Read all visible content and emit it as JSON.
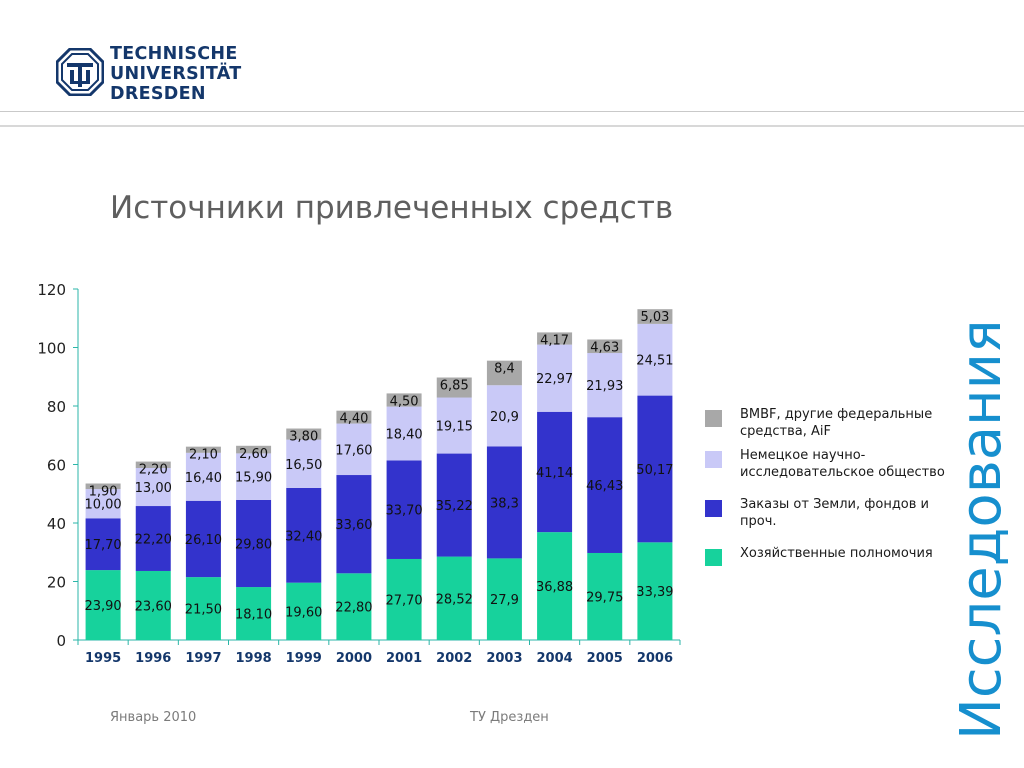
{
  "header": {
    "logo": {
      "line1": "TECHNISCHE",
      "line2": "UNIVERSITÄT",
      "line3": "DRESDEN",
      "icon": "tu-dresden-logo",
      "color": "#14376b"
    }
  },
  "slide": {
    "title": "Источники привлеченных средств",
    "side_label": "Исследования",
    "side_label_color": "#168fce"
  },
  "footer": {
    "left": "Январь  2010",
    "center": "ТУ Дрезден"
  },
  "legend": {
    "items": [
      {
        "label": "BMBF, другие федеральные средства, AiF",
        "color": "#a8a8a8"
      },
      {
        "label": "Немецкое научно-исследовательское общество",
        "color": "#c9c9f7"
      },
      {
        "label": "Заказы от Земли, фондов и проч.",
        "color": "#3333cc"
      },
      {
        "label": "Хозяйственные полномочия",
        "color": "#17d29c"
      }
    ]
  },
  "chart_data": {
    "type": "bar",
    "stacked": true,
    "categories": [
      "1995",
      "1996",
      "1997",
      "1998",
      "1999",
      "2000",
      "2001",
      "2002",
      "2003",
      "2004",
      "2005",
      "2006"
    ],
    "ylim": [
      0,
      120
    ],
    "yticks": [
      0,
      20,
      40,
      60,
      80,
      100,
      120
    ],
    "series": [
      {
        "name": "Хозяйственные полномочия",
        "color": "#17d29c",
        "values": [
          23.9,
          23.6,
          21.5,
          18.1,
          19.6,
          22.8,
          27.7,
          28.52,
          27.9,
          36.88,
          29.75,
          33.39
        ],
        "labels": [
          "23,90",
          "23,60",
          "21,50",
          "18,10",
          "19,60",
          "22,80",
          "27,70",
          "28,52",
          "27,9",
          "36,88",
          "29,75",
          "33,39"
        ]
      },
      {
        "name": "Заказы от Земли, фондов и проч.",
        "color": "#3333cc",
        "values": [
          17.7,
          22.2,
          26.1,
          29.8,
          32.4,
          33.6,
          33.7,
          35.22,
          38.3,
          41.14,
          46.43,
          50.17
        ],
        "labels": [
          "17,70",
          "22,20",
          "26,10",
          "29,80",
          "32,40",
          "33,60",
          "33,70",
          "35,22",
          "38,3",
          "41,14",
          "46,43",
          "50,17"
        ]
      },
      {
        "name": "Немецкое научно-исследовательское общество",
        "color": "#c9c9f7",
        "values": [
          10.0,
          13.0,
          16.4,
          15.9,
          16.5,
          17.6,
          18.4,
          19.15,
          20.9,
          22.97,
          21.93,
          24.51
        ],
        "labels": [
          "10,00",
          "13,00",
          "16,40",
          "15,90",
          "16,50",
          "17,60",
          "18,40",
          "19,15",
          "20,9",
          "22,97",
          "21,93",
          "24,51"
        ]
      },
      {
        "name": "BMBF, другие федеральные средства, AiF",
        "color": "#a8a8a8",
        "values": [
          1.9,
          2.2,
          2.1,
          2.6,
          3.8,
          4.4,
          4.5,
          6.85,
          8.4,
          4.17,
          4.63,
          5.03
        ],
        "labels": [
          "1,90",
          "2,20",
          "2,10",
          "2,60",
          "3,80",
          "4,40",
          "4,50",
          "6,85",
          "8,4",
          "4,17",
          "4,63",
          "5,03"
        ]
      }
    ]
  }
}
